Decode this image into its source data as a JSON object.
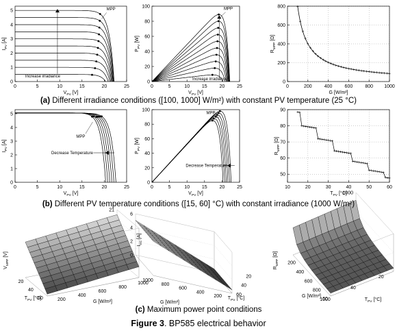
{
  "figure": {
    "caption_bold": "Figure 3",
    "caption_rest": ". BP585 electrical behavior",
    "row_captions": [
      {
        "bold": "(a)",
        "text": " Different irradiance conditions ([100, 1000] W/m²) with constant PV temperature (25 °C)"
      },
      {
        "bold": "(b)",
        "text": " Different PV temperature conditions ([15, 60] °C) with constant irradiance (1000 W/m²)"
      },
      {
        "bold": "(c)",
        "text": " Maximum power point conditions"
      }
    ]
  },
  "chart_data": [
    {
      "id": "a1",
      "type": "line",
      "xlabel": "V_PV [V]",
      "ylabel": "I_PV [A]",
      "xlim": [
        0,
        25
      ],
      "ylim": [
        0,
        5.3
      ],
      "xticks": [
        0,
        5,
        10,
        15,
        20,
        25
      ],
      "yticks": [
        0,
        1,
        2,
        3,
        4,
        5
      ],
      "grid": false,
      "annotations": [
        "MPP",
        "Increase irradiance"
      ],
      "family": {
        "parameter": "irradiance",
        "values": [
          100,
          200,
          300,
          400,
          500,
          600,
          700,
          800,
          900,
          1000
        ],
        "unit": "W/m²",
        "isc_at_1000": 5.0,
        "voc_range": [
          20.3,
          22.2
        ]
      }
    },
    {
      "id": "a2",
      "type": "line",
      "xlabel": "V_PV [V]",
      "ylabel": "P_PV [W]",
      "xlim": [
        0,
        25
      ],
      "ylim": [
        0,
        100
      ],
      "xticks": [
        0,
        5,
        10,
        15,
        20,
        25
      ],
      "yticks": [
        0,
        20,
        40,
        60,
        80,
        100
      ],
      "grid": false,
      "annotations": [
        "MPP",
        "Increase irradiance"
      ],
      "family": {
        "parameter": "irradiance",
        "values": [
          100,
          200,
          300,
          400,
          500,
          600,
          700,
          800,
          900,
          1000
        ],
        "unit": "W/m²",
        "pmpp_at_1000": 89
      }
    },
    {
      "id": "a3",
      "type": "line",
      "xlabel": "G [W/m²]",
      "ylabel": "R_MPP [Ω]",
      "xlim": [
        0,
        1000
      ],
      "ylim": [
        0,
        800
      ],
      "xticks": [
        0,
        200,
        400,
        600,
        800,
        1000
      ],
      "yticks": [
        0,
        200,
        400,
        600,
        800
      ],
      "grid": true,
      "x": [
        100,
        200,
        300,
        400,
        500,
        600,
        700,
        800,
        900,
        1000
      ],
      "y": [
        790,
        400,
        270,
        205,
        165,
        140,
        120,
        106,
        95,
        85
      ]
    },
    {
      "id": "b1",
      "type": "line",
      "xlabel": "V_PV [V]",
      "ylabel": "I_PV [A]",
      "xlim": [
        0,
        25
      ],
      "ylim": [
        0,
        5.3
      ],
      "xticks": [
        0,
        5,
        10,
        15,
        20,
        25
      ],
      "yticks": [
        0,
        1,
        2,
        3,
        4,
        5
      ],
      "grid": false,
      "annotations": [
        "MPP",
        "Decrease Temperature"
      ],
      "family": {
        "parameter": "temperature",
        "values": [
          15,
          24,
          33,
          42,
          51,
          60
        ],
        "unit": "°C",
        "isc": 5.05,
        "voc_range": [
          20.3,
          22.6
        ]
      }
    },
    {
      "id": "b2",
      "type": "line",
      "xlabel": "V_PV [V]",
      "ylabel": "P_PV [W]",
      "xlim": [
        0,
        25
      ],
      "ylim": [
        0,
        100
      ],
      "xticks": [
        0,
        5,
        10,
        15,
        20,
        25
      ],
      "yticks": [
        0,
        20,
        40,
        60,
        80,
        100
      ],
      "grid": false,
      "annotations": [
        "MPP",
        "Decrease Temperature"
      ],
      "family": {
        "parameter": "temperature",
        "values": [
          15,
          24,
          33,
          42,
          51,
          60
        ],
        "unit": "°C"
      }
    },
    {
      "id": "b3",
      "type": "line",
      "xlabel": "T_PV [°C]",
      "ylabel": "R_MPP [Ω]",
      "xlim": [
        10,
        60
      ],
      "ylim": [
        45,
        90
      ],
      "xticks": [
        10,
        20,
        30,
        40,
        50,
        60
      ],
      "yticks": [
        50,
        60,
        70,
        80,
        90
      ],
      "grid": true,
      "x": [
        15,
        16,
        17,
        18,
        19,
        20,
        21,
        22,
        23,
        24,
        25,
        26,
        27,
        28,
        29,
        30,
        31,
        32,
        33,
        34,
        35,
        36,
        37,
        38,
        39,
        40,
        41,
        42,
        43,
        44,
        45,
        46,
        47,
        48,
        49,
        50,
        51,
        52,
        53,
        54,
        55,
        56,
        57,
        58,
        59,
        60
      ],
      "y": [
        88.5,
        88.3,
        80,
        79.8,
        79.6,
        79.4,
        79.2,
        79,
        78.8,
        78.6,
        72,
        71.8,
        71.6,
        71.4,
        71.2,
        71,
        70.8,
        70.6,
        64.5,
        64.3,
        64.1,
        63.9,
        63.7,
        63.5,
        63.3,
        63.1,
        62.9,
        58,
        57.8,
        57.6,
        57.4,
        57.2,
        57,
        56.8,
        56.6,
        52.5,
        52.3,
        52.1,
        51.9,
        51.7,
        51.5,
        51.3,
        51.1,
        48,
        47.8,
        47.6
      ]
    },
    {
      "id": "c1",
      "type": "surface",
      "zlabel": "V_MPP [V]",
      "xlabel": "T_PV [°C]",
      "ylabel": "G [W/m²]",
      "xticks": [
        20,
        40,
        60
      ],
      "yticks": [
        200,
        400,
        600,
        800,
        1000
      ],
      "zticks": [
        16,
        17,
        18,
        19,
        20,
        21
      ],
      "zlim": [
        16,
        21
      ],
      "corners": {
        "T15_G100": 19.6,
        "T15_G1000": 20.5,
        "T60_G100": 16.2,
        "T60_G1000": 17.2
      }
    },
    {
      "id": "c2",
      "type": "surface",
      "zlabel": "I_SC [A]",
      "xlabel": "G [W/m²]",
      "ylabel": "T_PV [°C]",
      "xticks": [
        200,
        400,
        600,
        800,
        1000
      ],
      "yticks": [
        20,
        40,
        60
      ],
      "zticks": [
        0,
        2,
        4,
        6
      ],
      "zlim": [
        0,
        6
      ],
      "corners": {
        "G100_T15": 0.5,
        "G1000_T15": 5.0,
        "G100_T60": 0.55,
        "G1000_T60": 5.1
      }
    },
    {
      "id": "c3",
      "type": "surface",
      "zlabel": "R_MPP [Ω]",
      "xlabel": "G [W/m²]",
      "ylabel": "T_PV [°C]",
      "xticks": [
        200,
        400,
        600,
        800,
        1000
      ],
      "yticks": [
        20,
        40,
        60
      ],
      "zticks": [
        0,
        500,
        1000
      ],
      "zlim": [
        0,
        1000
      ],
      "corners": {
        "G100_T15": 900,
        "G1000_T15": 90,
        "G100_T60": 800,
        "G1000_T60": 50
      }
    }
  ]
}
